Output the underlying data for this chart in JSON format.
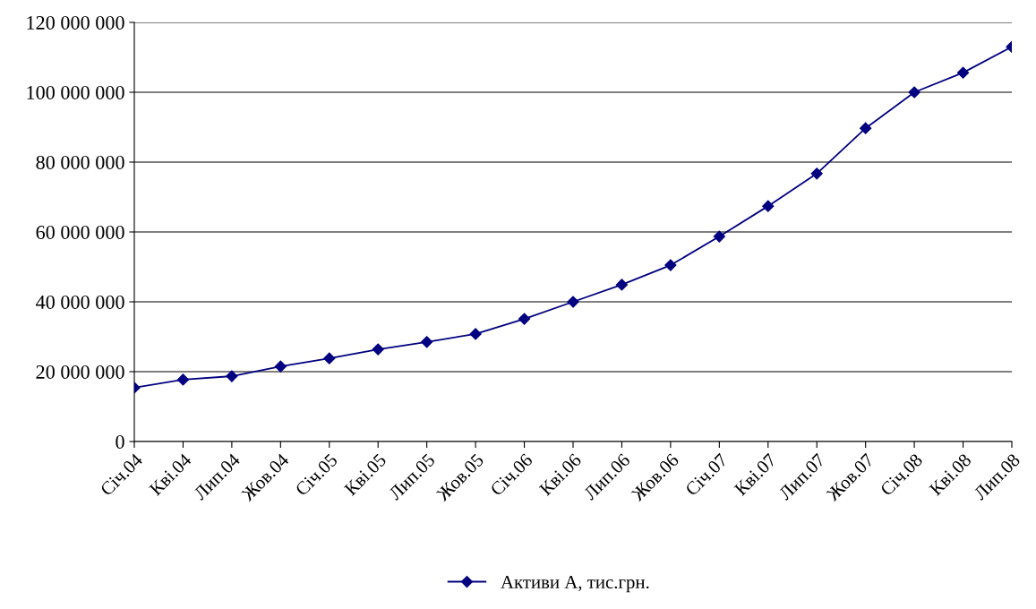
{
  "chart_data": {
    "type": "line",
    "categories": [
      "Січ.04",
      "Кві.04",
      "Лип.04",
      "Жов.04",
      "Січ.05",
      "Кві.05",
      "Лип.05",
      "Жов.05",
      "Січ.06",
      "Кві.06",
      "Лип.06",
      "Жов.06",
      "Січ.07",
      "Кві.07",
      "Лип.07",
      "Жов.07",
      "Січ.08",
      "Кві.08",
      "Лип.08"
    ],
    "series": [
      {
        "name": "Активи А, тис.грн.",
        "color": "#000080",
        "values": [
          15400000,
          17700000,
          18700000,
          21500000,
          23800000,
          26400000,
          28500000,
          30800000,
          35100000,
          40000000,
          44900000,
          50500000,
          58700000,
          67400000,
          76700000,
          89700000,
          100000000,
          105600000,
          113000000
        ]
      }
    ],
    "ylim": [
      0,
      120000000
    ],
    "yticks": [
      {
        "value": 0,
        "label": "0"
      },
      {
        "value": 20000000,
        "label": "20 000 000"
      },
      {
        "value": 40000000,
        "label": "40 000 000"
      },
      {
        "value": 60000000,
        "label": "60 000 000"
      },
      {
        "value": 80000000,
        "label": "80 000 000"
      },
      {
        "value": 100000000,
        "label": "100 000 000"
      },
      {
        "value": 120000000,
        "label": "120 000 000"
      }
    ],
    "grid": "y",
    "legend": "bottom",
    "marker": "diamond",
    "line_style": "solid"
  }
}
